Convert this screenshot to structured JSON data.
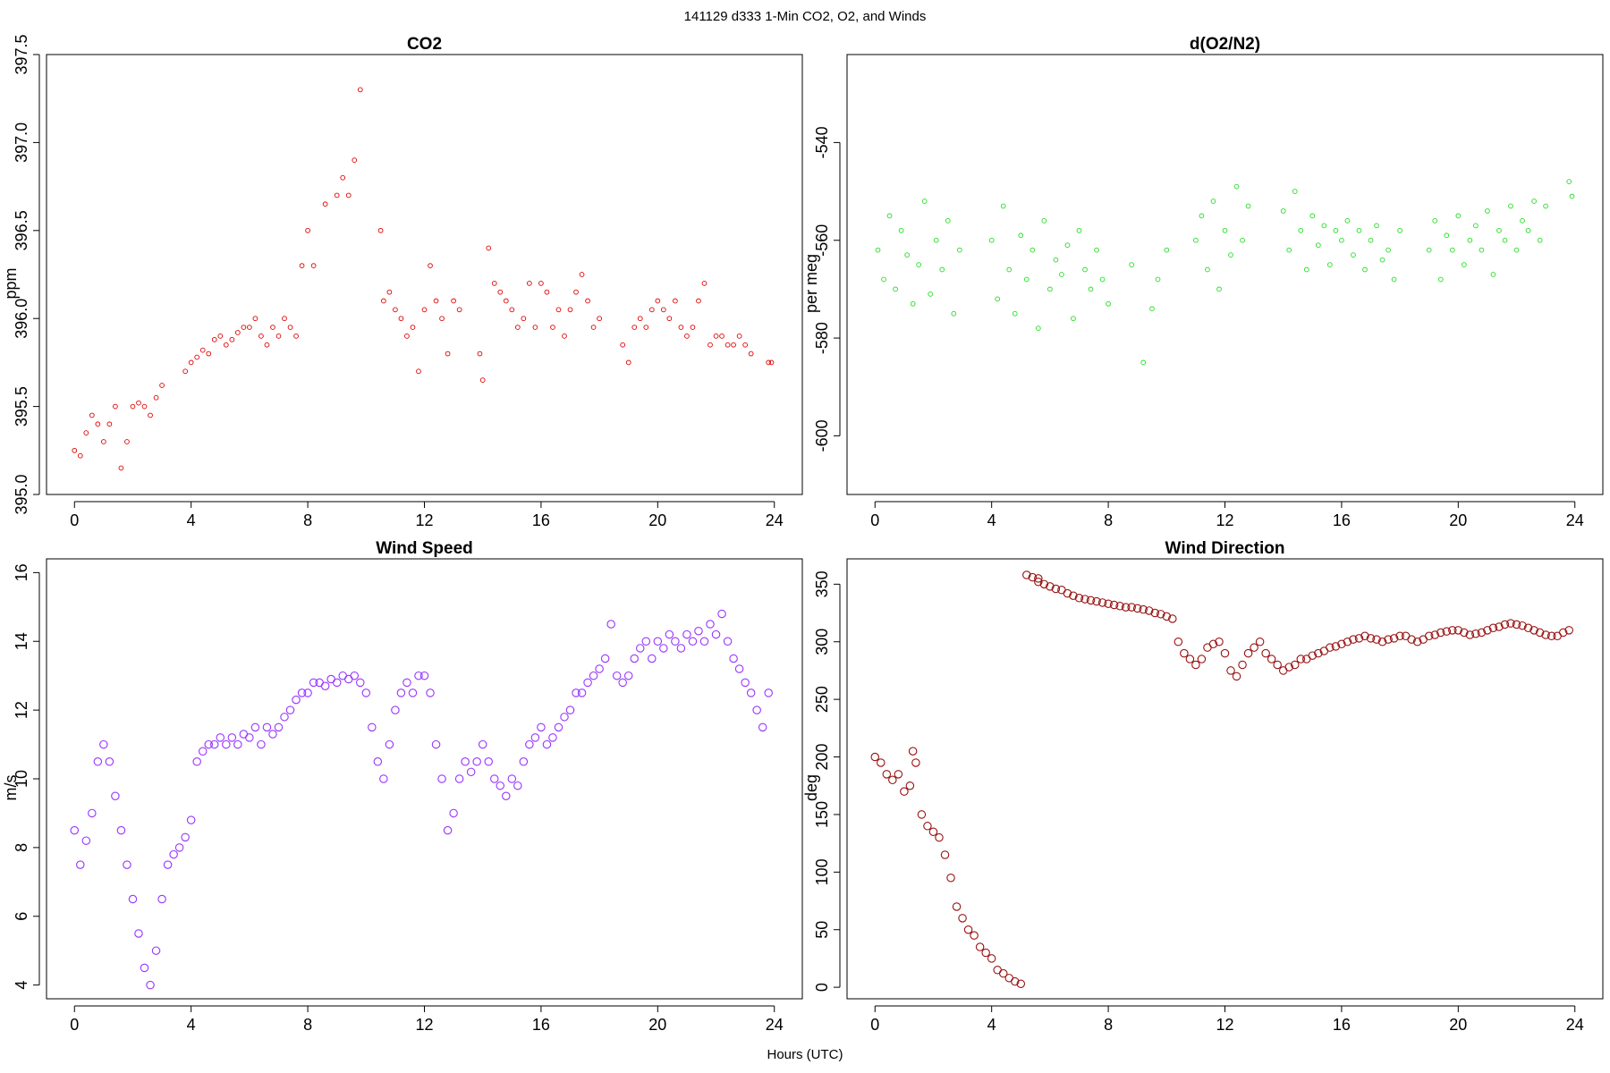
{
  "figure": {
    "title": "141129   d333   1-Min CO2, O2, and Winds",
    "xlabel": "Hours (UTC)"
  },
  "chart_data": [
    {
      "id": "co2",
      "type": "scatter",
      "title": "CO2",
      "xlabel": "",
      "ylabel": "ppm",
      "xlim": [
        0,
        24
      ],
      "ylim": [
        395.0,
        397.5
      ],
      "xticks": [
        "0",
        "4",
        "8",
        "12",
        "16",
        "20",
        "24"
      ],
      "yticks": [
        "395.0",
        "395.5",
        "396.0",
        "396.5",
        "397.0",
        "397.5"
      ],
      "color": "#e00000",
      "marker_size": "small",
      "series": [
        {
          "x": [
            0.0,
            0.2,
            0.4,
            0.6,
            0.8,
            1.0,
            1.2,
            1.4,
            1.6,
            1.8,
            2.0,
            2.2,
            2.4,
            2.6,
            2.8,
            3.0,
            3.8,
            4.0,
            4.2,
            4.4,
            4.6,
            4.8,
            5.0,
            5.2,
            5.4,
            5.6,
            5.8,
            6.0,
            6.2,
            6.4,
            6.6,
            6.8,
            7.0,
            7.2,
            7.4,
            7.6,
            7.8,
            8.0,
            8.2,
            8.6,
            9.0,
            9.2,
            9.4,
            9.6,
            9.8,
            10.5,
            10.6,
            10.8,
            11.0,
            11.2,
            11.4,
            11.6,
            11.8,
            12.0,
            12.2,
            12.4,
            12.6,
            12.8,
            13.0,
            13.2,
            13.9,
            14.0,
            14.2,
            14.4,
            14.6,
            14.8,
            15.0,
            15.2,
            15.4,
            15.6,
            15.8,
            16.0,
            16.2,
            16.4,
            16.6,
            16.8,
            17.0,
            17.2,
            17.4,
            17.6,
            17.8,
            18.0,
            18.8,
            19.0,
            19.2,
            19.4,
            19.6,
            19.8,
            20.0,
            20.2,
            20.4,
            20.6,
            20.8,
            21.0,
            21.2,
            21.4,
            21.6,
            21.8,
            22.0,
            22.2,
            22.4,
            22.6,
            22.8,
            23.0,
            23.2,
            23.8,
            23.9
          ],
          "y": [
            395.25,
            395.22,
            395.35,
            395.45,
            395.4,
            395.3,
            395.4,
            395.5,
            395.15,
            395.3,
            395.5,
            395.52,
            395.5,
            395.45,
            395.55,
            395.62,
            395.7,
            395.75,
            395.78,
            395.82,
            395.8,
            395.88,
            395.9,
            395.85,
            395.88,
            395.92,
            395.95,
            395.95,
            396.0,
            395.9,
            395.85,
            395.95,
            395.9,
            396.0,
            395.95,
            395.9,
            396.3,
            396.5,
            396.3,
            396.65,
            396.7,
            396.8,
            396.7,
            396.9,
            397.3,
            396.5,
            396.1,
            396.15,
            396.05,
            396.0,
            395.9,
            395.95,
            395.7,
            396.05,
            396.3,
            396.1,
            396.0,
            395.8,
            396.1,
            396.05,
            395.8,
            395.65,
            396.4,
            396.2,
            396.15,
            396.1,
            396.05,
            395.95,
            396.0,
            396.2,
            395.95,
            396.2,
            396.15,
            395.95,
            396.05,
            395.9,
            396.05,
            396.15,
            396.25,
            396.1,
            395.95,
            396.0,
            395.85,
            395.75,
            395.95,
            396.0,
            395.95,
            396.05,
            396.1,
            396.05,
            396.0,
            396.1,
            395.95,
            395.9,
            395.95,
            396.1,
            396.2,
            395.85,
            395.9,
            395.9,
            395.85,
            395.85,
            395.9,
            395.85,
            395.8,
            395.75,
            395.75
          ]
        }
      ]
    },
    {
      "id": "o2",
      "type": "scatter",
      "title": "d(O2/N2)",
      "xlabel": "",
      "ylabel": "per meg",
      "xlim": [
        0,
        24
      ],
      "ylim": [
        -612,
        -522
      ],
      "xticks": [
        "0",
        "4",
        "8",
        "12",
        "16",
        "20",
        "24"
      ],
      "yticks": [
        "-600",
        "-580",
        "-560",
        "-540"
      ],
      "color": "#22dd22",
      "marker_size": "small",
      "series": [
        {
          "x": [
            0.1,
            0.3,
            0.5,
            0.7,
            0.9,
            1.1,
            1.3,
            1.5,
            1.7,
            1.9,
            2.1,
            2.3,
            2.5,
            2.7,
            2.9,
            4.0,
            4.2,
            4.4,
            4.6,
            4.8,
            5.0,
            5.2,
            5.4,
            5.6,
            5.8,
            6.0,
            6.2,
            6.4,
            6.6,
            6.8,
            7.0,
            7.2,
            7.4,
            7.6,
            7.8,
            8.0,
            8.8,
            9.2,
            9.5,
            9.7,
            10.0,
            11.0,
            11.2,
            11.4,
            11.6,
            11.8,
            12.0,
            12.2,
            12.4,
            12.6,
            12.8,
            14.0,
            14.2,
            14.4,
            14.6,
            14.8,
            15.0,
            15.2,
            15.4,
            15.6,
            15.8,
            16.0,
            16.2,
            16.4,
            16.6,
            16.8,
            17.0,
            17.2,
            17.4,
            17.6,
            17.8,
            18.0,
            19.0,
            19.2,
            19.4,
            19.6,
            19.8,
            20.0,
            20.2,
            20.4,
            20.6,
            20.8,
            21.0,
            21.2,
            21.4,
            21.6,
            21.8,
            22.0,
            22.2,
            22.4,
            22.6,
            22.8,
            23.0,
            23.8,
            23.9
          ],
          "y": [
            -562,
            -568,
            -555,
            -570,
            -558,
            -563,
            -573,
            -565,
            -552,
            -571,
            -560,
            -566,
            -556,
            -575,
            -562,
            -560,
            -572,
            -553,
            -566,
            -575,
            -559,
            -568,
            -562,
            -578,
            -556,
            -570,
            -564,
            -567,
            -561,
            -576,
            -558,
            -566,
            -570,
            -562,
            -568,
            -573,
            -565,
            -585,
            -574,
            -568,
            -562,
            -560,
            -555,
            -566,
            -552,
            -570,
            -558,
            -563,
            -549,
            -560,
            -553,
            -554,
            -562,
            -550,
            -558,
            -566,
            -555,
            -561,
            -557,
            -565,
            -558,
            -560,
            -556,
            -563,
            -558,
            -566,
            -560,
            -557,
            -564,
            -562,
            -568,
            -558,
            -562,
            -556,
            -568,
            -559,
            -562,
            -555,
            -565,
            -560,
            -557,
            -562,
            -554,
            -567,
            -558,
            -560,
            -553,
            -562,
            -556,
            -558,
            -552,
            -560,
            -553,
            -548,
            -551
          ]
        }
      ]
    },
    {
      "id": "wind_speed",
      "type": "scatter",
      "title": "Wind Speed",
      "xlabel": "",
      "ylabel": "m/s",
      "xlim": [
        0,
        24
      ],
      "ylim": [
        3.6,
        16.4
      ],
      "xticks": [
        "0",
        "4",
        "8",
        "12",
        "16",
        "20",
        "24"
      ],
      "yticks": [
        "4",
        "6",
        "8",
        "10",
        "12",
        "14",
        "16"
      ],
      "color": "#9933ff",
      "marker_size": "large",
      "series": [
        {
          "x": [
            0.0,
            0.2,
            0.4,
            0.6,
            0.8,
            1.0,
            1.2,
            1.4,
            1.6,
            1.8,
            2.0,
            2.2,
            2.4,
            2.6,
            2.8,
            3.0,
            3.2,
            3.4,
            3.6,
            3.8,
            4.0,
            4.2,
            4.4,
            4.6,
            4.8,
            5.0,
            5.2,
            5.4,
            5.6,
            5.8,
            6.0,
            6.2,
            6.4,
            6.6,
            6.8,
            7.0,
            7.2,
            7.4,
            7.6,
            7.8,
            8.0,
            8.2,
            8.4,
            8.6,
            8.8,
            9.0,
            9.2,
            9.4,
            9.6,
            9.8,
            10.0,
            10.2,
            10.4,
            10.6,
            10.8,
            11.0,
            11.2,
            11.4,
            11.6,
            11.8,
            12.0,
            12.2,
            12.4,
            12.6,
            12.8,
            13.0,
            13.2,
            13.4,
            13.6,
            13.8,
            14.0,
            14.2,
            14.4,
            14.6,
            14.8,
            15.0,
            15.2,
            15.4,
            15.6,
            15.8,
            16.0,
            16.2,
            16.4,
            16.6,
            16.8,
            17.0,
            17.2,
            17.4,
            17.6,
            17.8,
            18.0,
            18.2,
            18.4,
            18.6,
            18.8,
            19.0,
            19.2,
            19.4,
            19.6,
            19.8,
            20.0,
            20.2,
            20.4,
            20.6,
            20.8,
            21.0,
            21.2,
            21.4,
            21.6,
            21.8,
            22.0,
            22.2,
            22.4,
            22.6,
            22.8,
            23.0,
            23.2,
            23.4,
            23.6,
            23.8
          ],
          "y": [
            8.5,
            7.5,
            8.2,
            9.0,
            10.5,
            11.0,
            10.5,
            9.5,
            8.5,
            7.5,
            6.5,
            5.5,
            4.5,
            4.0,
            5.0,
            6.5,
            7.5,
            7.8,
            8.0,
            8.3,
            8.8,
            10.5,
            10.8,
            11.0,
            11.0,
            11.2,
            11.0,
            11.2,
            11.0,
            11.3,
            11.2,
            11.5,
            11.0,
            11.5,
            11.3,
            11.5,
            11.8,
            12.0,
            12.3,
            12.5,
            12.5,
            12.8,
            12.8,
            12.7,
            12.9,
            12.8,
            13.0,
            12.9,
            13.0,
            12.8,
            12.5,
            11.5,
            10.5,
            10.0,
            11.0,
            12.0,
            12.5,
            12.8,
            12.5,
            13.0,
            13.0,
            12.5,
            11.0,
            10.0,
            8.5,
            9.0,
            10.0,
            10.5,
            10.2,
            10.5,
            11.0,
            10.5,
            10.0,
            9.8,
            9.5,
            10.0,
            9.8,
            10.5,
            11.0,
            11.2,
            11.5,
            11.0,
            11.2,
            11.5,
            11.8,
            12.0,
            12.5,
            12.5,
            12.8,
            13.0,
            13.2,
            13.5,
            14.5,
            13.0,
            12.8,
            13.0,
            13.5,
            13.8,
            14.0,
            13.5,
            14.0,
            13.8,
            14.2,
            14.0,
            13.8,
            14.2,
            14.0,
            14.3,
            14.0,
            14.5,
            14.2,
            14.8,
            14.0,
            13.5,
            13.2,
            12.8,
            12.5,
            12.0,
            11.5,
            12.5
          ]
        }
      ]
    },
    {
      "id": "wind_direction",
      "type": "scatter",
      "title": "Wind Direction",
      "xlabel": "",
      "ylabel": "deg",
      "xlim": [
        0,
        24
      ],
      "ylim": [
        -10,
        372
      ],
      "xticks": [
        "0",
        "4",
        "8",
        "12",
        "16",
        "20",
        "24"
      ],
      "yticks": [
        "0",
        "50",
        "100",
        "150",
        "200",
        "250",
        "300",
        "350"
      ],
      "color": "#991111",
      "marker_size": "large",
      "series": [
        {
          "x": [
            0.0,
            0.2,
            0.4,
            0.6,
            0.8,
            1.0,
            1.2,
            1.3,
            1.4,
            1.6,
            1.8,
            2.0,
            2.2,
            2.4,
            2.6,
            2.8,
            3.0,
            3.2,
            3.4,
            3.6,
            3.8,
            4.0,
            4.2,
            4.4,
            4.6,
            4.8,
            5.0,
            5.2,
            5.4,
            5.6,
            5.6,
            5.8,
            6.0,
            6.2,
            6.4,
            6.6,
            6.8,
            7.0,
            7.2,
            7.4,
            7.6,
            7.8,
            8.0,
            8.2,
            8.4,
            8.6,
            8.8,
            9.0,
            9.2,
            9.4,
            9.6,
            9.8,
            10.0,
            10.2,
            10.4,
            10.6,
            10.8,
            11.0,
            11.2,
            11.4,
            11.6,
            11.8,
            12.0,
            12.2,
            12.4,
            12.6,
            12.8,
            13.0,
            13.2,
            13.4,
            13.6,
            13.8,
            14.0,
            14.2,
            14.4,
            14.6,
            14.8,
            15.0,
            15.2,
            15.4,
            15.6,
            15.8,
            16.0,
            16.2,
            16.4,
            16.6,
            16.8,
            17.0,
            17.2,
            17.4,
            17.6,
            17.8,
            18.0,
            18.2,
            18.4,
            18.6,
            18.8,
            19.0,
            19.2,
            19.4,
            19.6,
            19.8,
            20.0,
            20.2,
            20.4,
            20.6,
            20.8,
            21.0,
            21.2,
            21.4,
            21.6,
            21.8,
            22.0,
            22.2,
            22.4,
            22.6,
            22.8,
            23.0,
            23.2,
            23.4,
            23.6,
            23.8
          ],
          "y": [
            200,
            195,
            185,
            180,
            185,
            170,
            175,
            205,
            195,
            150,
            140,
            135,
            130,
            115,
            95,
            70,
            60,
            50,
            45,
            35,
            30,
            25,
            15,
            12,
            8,
            5,
            3,
            358,
            356,
            355,
            352,
            350,
            348,
            346,
            345,
            342,
            340,
            338,
            337,
            336,
            335,
            334,
            333,
            332,
            331,
            330,
            330,
            329,
            328,
            327,
            325,
            324,
            322,
            320,
            300,
            290,
            285,
            280,
            285,
            295,
            298,
            300,
            290,
            275,
            270,
            280,
            290,
            295,
            300,
            290,
            285,
            280,
            275,
            278,
            280,
            285,
            285,
            288,
            290,
            292,
            295,
            296,
            298,
            300,
            302,
            303,
            305,
            303,
            302,
            300,
            302,
            303,
            305,
            305,
            302,
            300,
            302,
            305,
            306,
            308,
            309,
            310,
            310,
            308,
            306,
            307,
            308,
            310,
            312,
            313,
            315,
            316,
            315,
            314,
            312,
            310,
            308,
            306,
            305,
            305,
            308,
            310
          ]
        }
      ]
    }
  ]
}
